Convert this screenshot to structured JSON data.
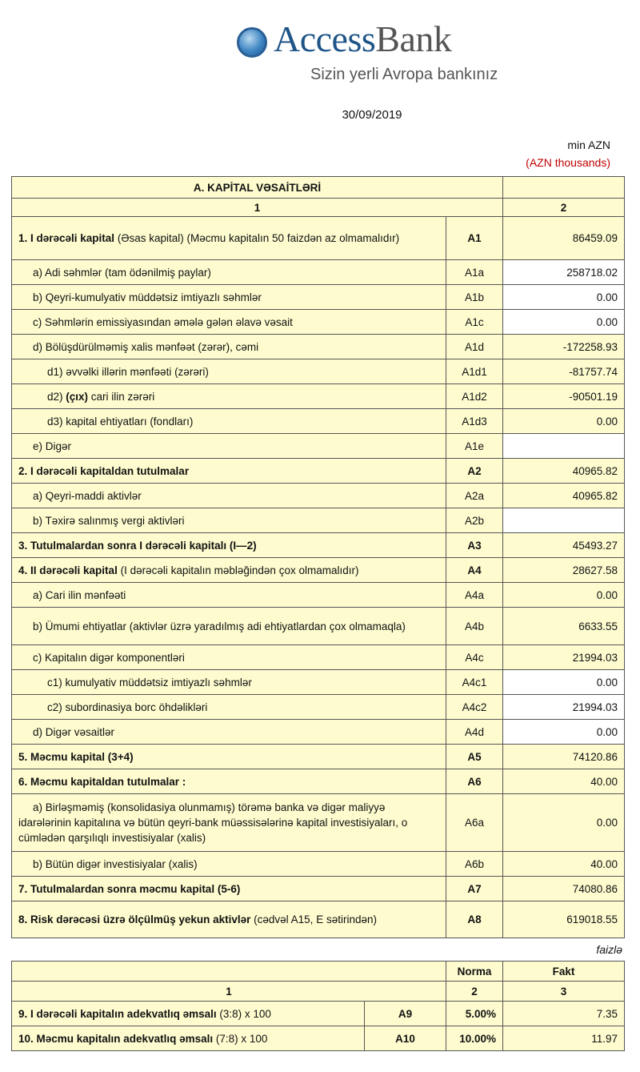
{
  "logo": {
    "brand": "AccessBank",
    "brand_part1": "Access",
    "brand_part2": "Bank",
    "tagline": "Sizin yerli Avropa bankınız",
    "brand_color": "#1e5487"
  },
  "date": "30/09/2019",
  "unit": {
    "az": "min AZN",
    "en": "(AZN thousands)",
    "en_color": "#c00000"
  },
  "table1": {
    "title": "A. KAPİTAL VƏSAİTLƏRİ",
    "col1": "1",
    "col2": "2",
    "rows": [
      {
        "level": 0,
        "code": "A1",
        "value": "86459.09",
        "seg": [
          {
            "t": "1. I dərəcəli kapital",
            "b": true
          },
          {
            "t": " (Əsas kapital) (Məcmu kapitalın 50 faizdən  az olmamalıdır)",
            "b": false
          }
        ],
        "white": false,
        "h": 54
      },
      {
        "level": 1,
        "code": "A1a",
        "value": "258718.02",
        "seg": [
          {
            "t": "a) Adi səhmlər (tam ödənilmiş paylar)",
            "b": false
          }
        ],
        "white": true
      },
      {
        "level": 1,
        "code": "A1b",
        "value": "0.00",
        "seg": [
          {
            "t": "b) Qeyri-kumulyativ müddətsiz imtiyazlı səhmlər",
            "b": false
          }
        ],
        "white": true
      },
      {
        "level": 1,
        "code": "A1c",
        "value": "0.00",
        "seg": [
          {
            "t": "c) Səhmlərin emissiyasından əmələ gələn  əlavə vəsait",
            "b": false
          }
        ],
        "white": true
      },
      {
        "level": 1,
        "code": "A1d",
        "value": "-172258.93",
        "seg": [
          {
            "t": "d)   Bölüşdürülməmiş xalis mənfəət (zərər), cəmi",
            "b": false
          }
        ],
        "white": false
      },
      {
        "level": 2,
        "code": "A1d1",
        "value": "-81757.74",
        "seg": [
          {
            "t": "d1) əvvəlki illərin mənfəəti (zərəri)",
            "b": false
          }
        ],
        "white": false
      },
      {
        "level": 2,
        "code": "A1d2",
        "value": "-90501.19",
        "seg": [
          {
            "t": "d2) ",
            "b": false
          },
          {
            "t": "(çıx)",
            "b": true
          },
          {
            "t": " cari ilin zərəri",
            "b": false
          }
        ],
        "white": false
      },
      {
        "level": 2,
        "code": "A1d3",
        "value": "0.00",
        "seg": [
          {
            "t": "d3) kapital ehtiyatları (fondları)",
            "b": false
          }
        ],
        "white": false
      },
      {
        "level": 1,
        "code": "A1e",
        "value": "",
        "seg": [
          {
            "t": "e) Digər",
            "b": false
          }
        ],
        "white": true
      },
      {
        "level": 0,
        "code": "A2",
        "value": "40965.82",
        "seg": [
          {
            "t": "2. I dərəcəli kapitaldan  tutulmalar",
            "b": true
          }
        ],
        "white": false
      },
      {
        "level": 1,
        "code": "A2a",
        "value": "40965.82",
        "seg": [
          {
            "t": "a) Qeyri-maddi aktivlər",
            "b": false
          }
        ],
        "white": false
      },
      {
        "level": 1,
        "code": "A2b",
        "value": "",
        "seg": [
          {
            "t": "b) Təxirə salınmış vergi aktivləri",
            "b": false
          }
        ],
        "white": true
      },
      {
        "level": 0,
        "code": "A3",
        "value": "45493.27",
        "seg": [
          {
            "t": "3. Tutulmalardan  sonra I dərəcəli kapitalı (I—2)",
            "b": true
          }
        ],
        "white": false
      },
      {
        "level": 0,
        "code": "A4",
        "value": "28627.58",
        "seg": [
          {
            "t": "4. II dərəcəli  kapital",
            "b": true
          },
          {
            "t": " (I dərəcəli  kapitalın  məbləğindən çox olmamalıdır)",
            "b": false
          }
        ],
        "white": false
      },
      {
        "level": 1,
        "code": "A4a",
        "value": "0.00",
        "seg": [
          {
            "t": "a) Cari ilin mənfəəti",
            "b": false
          }
        ],
        "white": false
      },
      {
        "level": 1,
        "code": "A4b",
        "value": "6633.55",
        "seg": [
          {
            "t": "b) Ümumi ehtiyatlar (aktivlər üzrə yaradılmış adi ehtiyatlardan çox olmamaqla)",
            "b": false
          }
        ],
        "white": false,
        "h": 47,
        "hang": true
      },
      {
        "level": 1,
        "code": "A4c",
        "value": "21994.03",
        "seg": [
          {
            "t": "c)  Kapitalın digər komponentləri",
            "b": false
          }
        ],
        "white": false
      },
      {
        "level": 2,
        "code": "A4c1",
        "value": "0.00",
        "seg": [
          {
            "t": "c1) kumulyativ müddətsiz imtiyazlı səhmlər",
            "b": false
          }
        ],
        "white": true
      },
      {
        "level": 2,
        "code": "A4c2",
        "value": "21994.03",
        "seg": [
          {
            "t": "c2) subordinasiya borc öhdəlikləri",
            "b": false
          }
        ],
        "white": true
      },
      {
        "level": 1,
        "code": "A4d",
        "value": "0.00",
        "seg": [
          {
            "t": "d) Digər vəsaitlər",
            "b": false
          }
        ],
        "white": true
      },
      {
        "level": 0,
        "code": "A5",
        "value": "74120.86",
        "seg": [
          {
            "t": "5. Məcmu kapital (3+4)",
            "b": true
          }
        ],
        "white": false
      },
      {
        "level": 0,
        "code": "A6",
        "value": "40.00",
        "seg": [
          {
            "t": "6. Məcmu kapitaldan tutulmalar :",
            "b": true
          }
        ],
        "white": false
      },
      {
        "level": 1,
        "code": "A6a",
        "value": "0.00",
        "seg": [
          {
            "t": "a)   Birləşməmiş (konsolidasiya olunmamış) törəmə banka və digər maliyyə idarələrinin kapitalına və bütün qeyri-bank müəssisələrinə kapital investisiyaları, o cümlədən qarşılıqlı investisiyalar (xalis)",
            "b": false
          }
        ],
        "white": false,
        "h": 72,
        "hang": true
      },
      {
        "level": 1,
        "code": "A6b",
        "value": "40.00",
        "seg": [
          {
            "t": "b)    Bütün digər investisiyalar (xalis)",
            "b": false
          }
        ],
        "white": false
      },
      {
        "level": 0,
        "code": "A7",
        "value": "74080.86",
        "seg": [
          {
            "t": "7. Tutulmalardan  sonra məcmu kapital (5-6)",
            "b": true
          }
        ],
        "white": false
      },
      {
        "level": 0,
        "code": "A8",
        "value": "619018.55",
        "seg": [
          {
            "t": "8. Risk dərəcəsi üzrə ölçülmüş  yekun aktivlər",
            "b": true
          },
          {
            "t": "  (cədvəl A15, E sətirindən)",
            "b": false
          }
        ],
        "white": false,
        "h": 46
      }
    ]
  },
  "faizle": "faizlə",
  "table2": {
    "norma": "Norma",
    "fakt": "Fakt",
    "col1": "1",
    "col2": "2",
    "col3": "3",
    "rows": [
      {
        "code": "A9",
        "norma": "5.00%",
        "fakt": "7.35",
        "seg": [
          {
            "t": "9. I dərəcəli  kapitalın  adekvatlıq əmsalı",
            "b": true
          },
          {
            "t": " (3:8) x 100",
            "b": false
          }
        ]
      },
      {
        "code": "A10",
        "norma": "10.00%",
        "fakt": "11.97",
        "seg": [
          {
            "t": "10. Məcmu kapitalın  adekvatlıq  əmsalı",
            "b": true
          },
          {
            "t": " (7:8) x 100",
            "b": false
          }
        ]
      }
    ]
  }
}
